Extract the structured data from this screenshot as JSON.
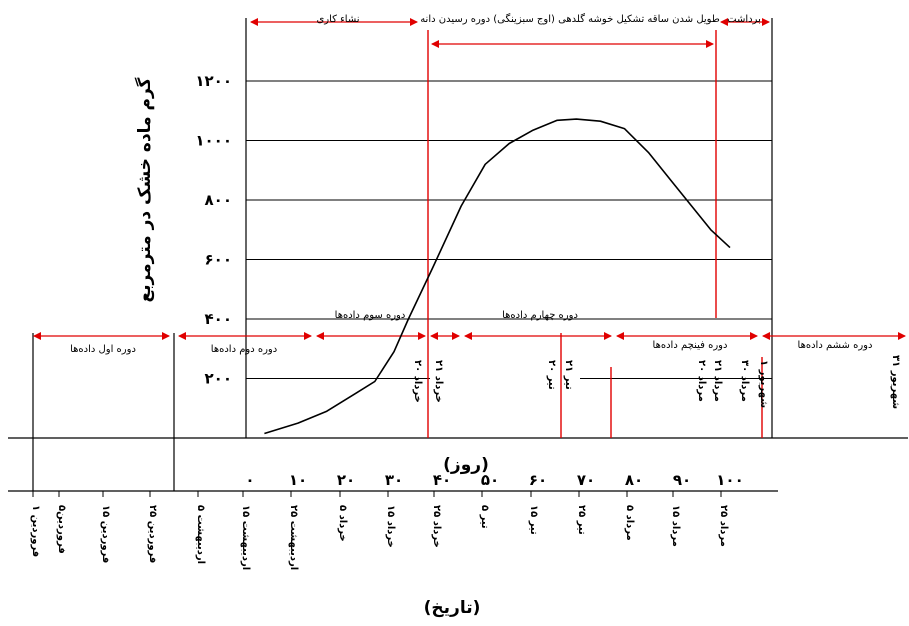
{
  "chart_data": {
    "type": "line",
    "ylabel": "گرم ماده خشک در مترمربع",
    "xlabel_days": "(روز)",
    "xlabel_date": "(تاریخ)",
    "y_ticks": [
      "۲۰۰",
      "۴۰۰",
      "۶۰۰",
      "۸۰۰",
      "۱۰۰۰",
      "۱۲۰۰"
    ],
    "y_tick_values": [
      200,
      400,
      600,
      800,
      1000,
      1200
    ],
    "x_ticks": [
      "۰",
      "۱۰",
      "۲۰",
      "۳۰",
      "۴۰",
      "۵۰",
      "۶۰",
      "۷۰",
      "۸۰",
      "۹۰",
      "۱۰۰"
    ],
    "x_tick_values": [
      0,
      10,
      20,
      30,
      40,
      50,
      60,
      70,
      80,
      90,
      100
    ],
    "ylim": [
      0,
      1200
    ],
    "series": [
      {
        "x": [
          3,
          10,
          16,
          22,
          26,
          30,
          33,
          38,
          44,
          49,
          54,
          59,
          64,
          68,
          73,
          78,
          83,
          88,
          92,
          96,
          100
        ],
        "y": [
          15,
          50,
          90,
          150,
          190,
          290,
          400,
          570,
          780,
          920,
          990,
          1035,
          1068,
          1072,
          1065,
          1040,
          960,
          860,
          780,
          700,
          640
        ]
      }
    ],
    "date_ticks": [
      "۱ فروردین",
      "۵فروردین",
      "۱۵ فروردین",
      "۲۵ فروردین",
      "۵ اردیبهشت",
      "۱۵ اردیبهشت",
      "۲۵ اردیبهشت",
      "۵ خرداد",
      "۱۵ خرداد",
      "۲۵ خرداد",
      "۵ تیر",
      "۱۵ تیر",
      "۲۵ تیر",
      "۵ مرداد",
      "۱۵ مرداد",
      "۲۵ مرداد"
    ],
    "top_phases": [
      {
        "label": "نشاء کاری"
      },
      {
        "label": "طویل شدن ساقه تشکیل خوشه گلدهی (اوج سبزینگی) دوره رسیدن دانه"
      },
      {
        "label": "برداشت"
      }
    ],
    "bottom_periods": [
      {
        "label": "دوره اول داده‌ها"
      },
      {
        "label": "دوره دوم داده‌ها"
      },
      {
        "label": "دوره سوم داده‌ها"
      },
      {
        "label": "دوره چهارم داده‌ها"
      },
      {
        "label": "دوره فینچم داده‌ها"
      },
      {
        "label": "دوره ششم داده‌ها"
      }
    ],
    "boundary_dates": [
      {
        "label": "۲۰ خرداد"
      },
      {
        "label": "۲۱ خرداد"
      },
      {
        "label": "۲۰ تیر"
      },
      {
        "label": "۲۱ تیر"
      },
      {
        "label": "۲۰ مرداد"
      },
      {
        "label": "۲۱ مرداد"
      },
      {
        "label": "۳۰ مرداد"
      },
      {
        "label": "۱ شهریور"
      },
      {
        "label": "۳۱ شهریور"
      }
    ],
    "colors": {
      "curve": "#000000",
      "grid": "#000000",
      "marker": "#e00000"
    }
  }
}
